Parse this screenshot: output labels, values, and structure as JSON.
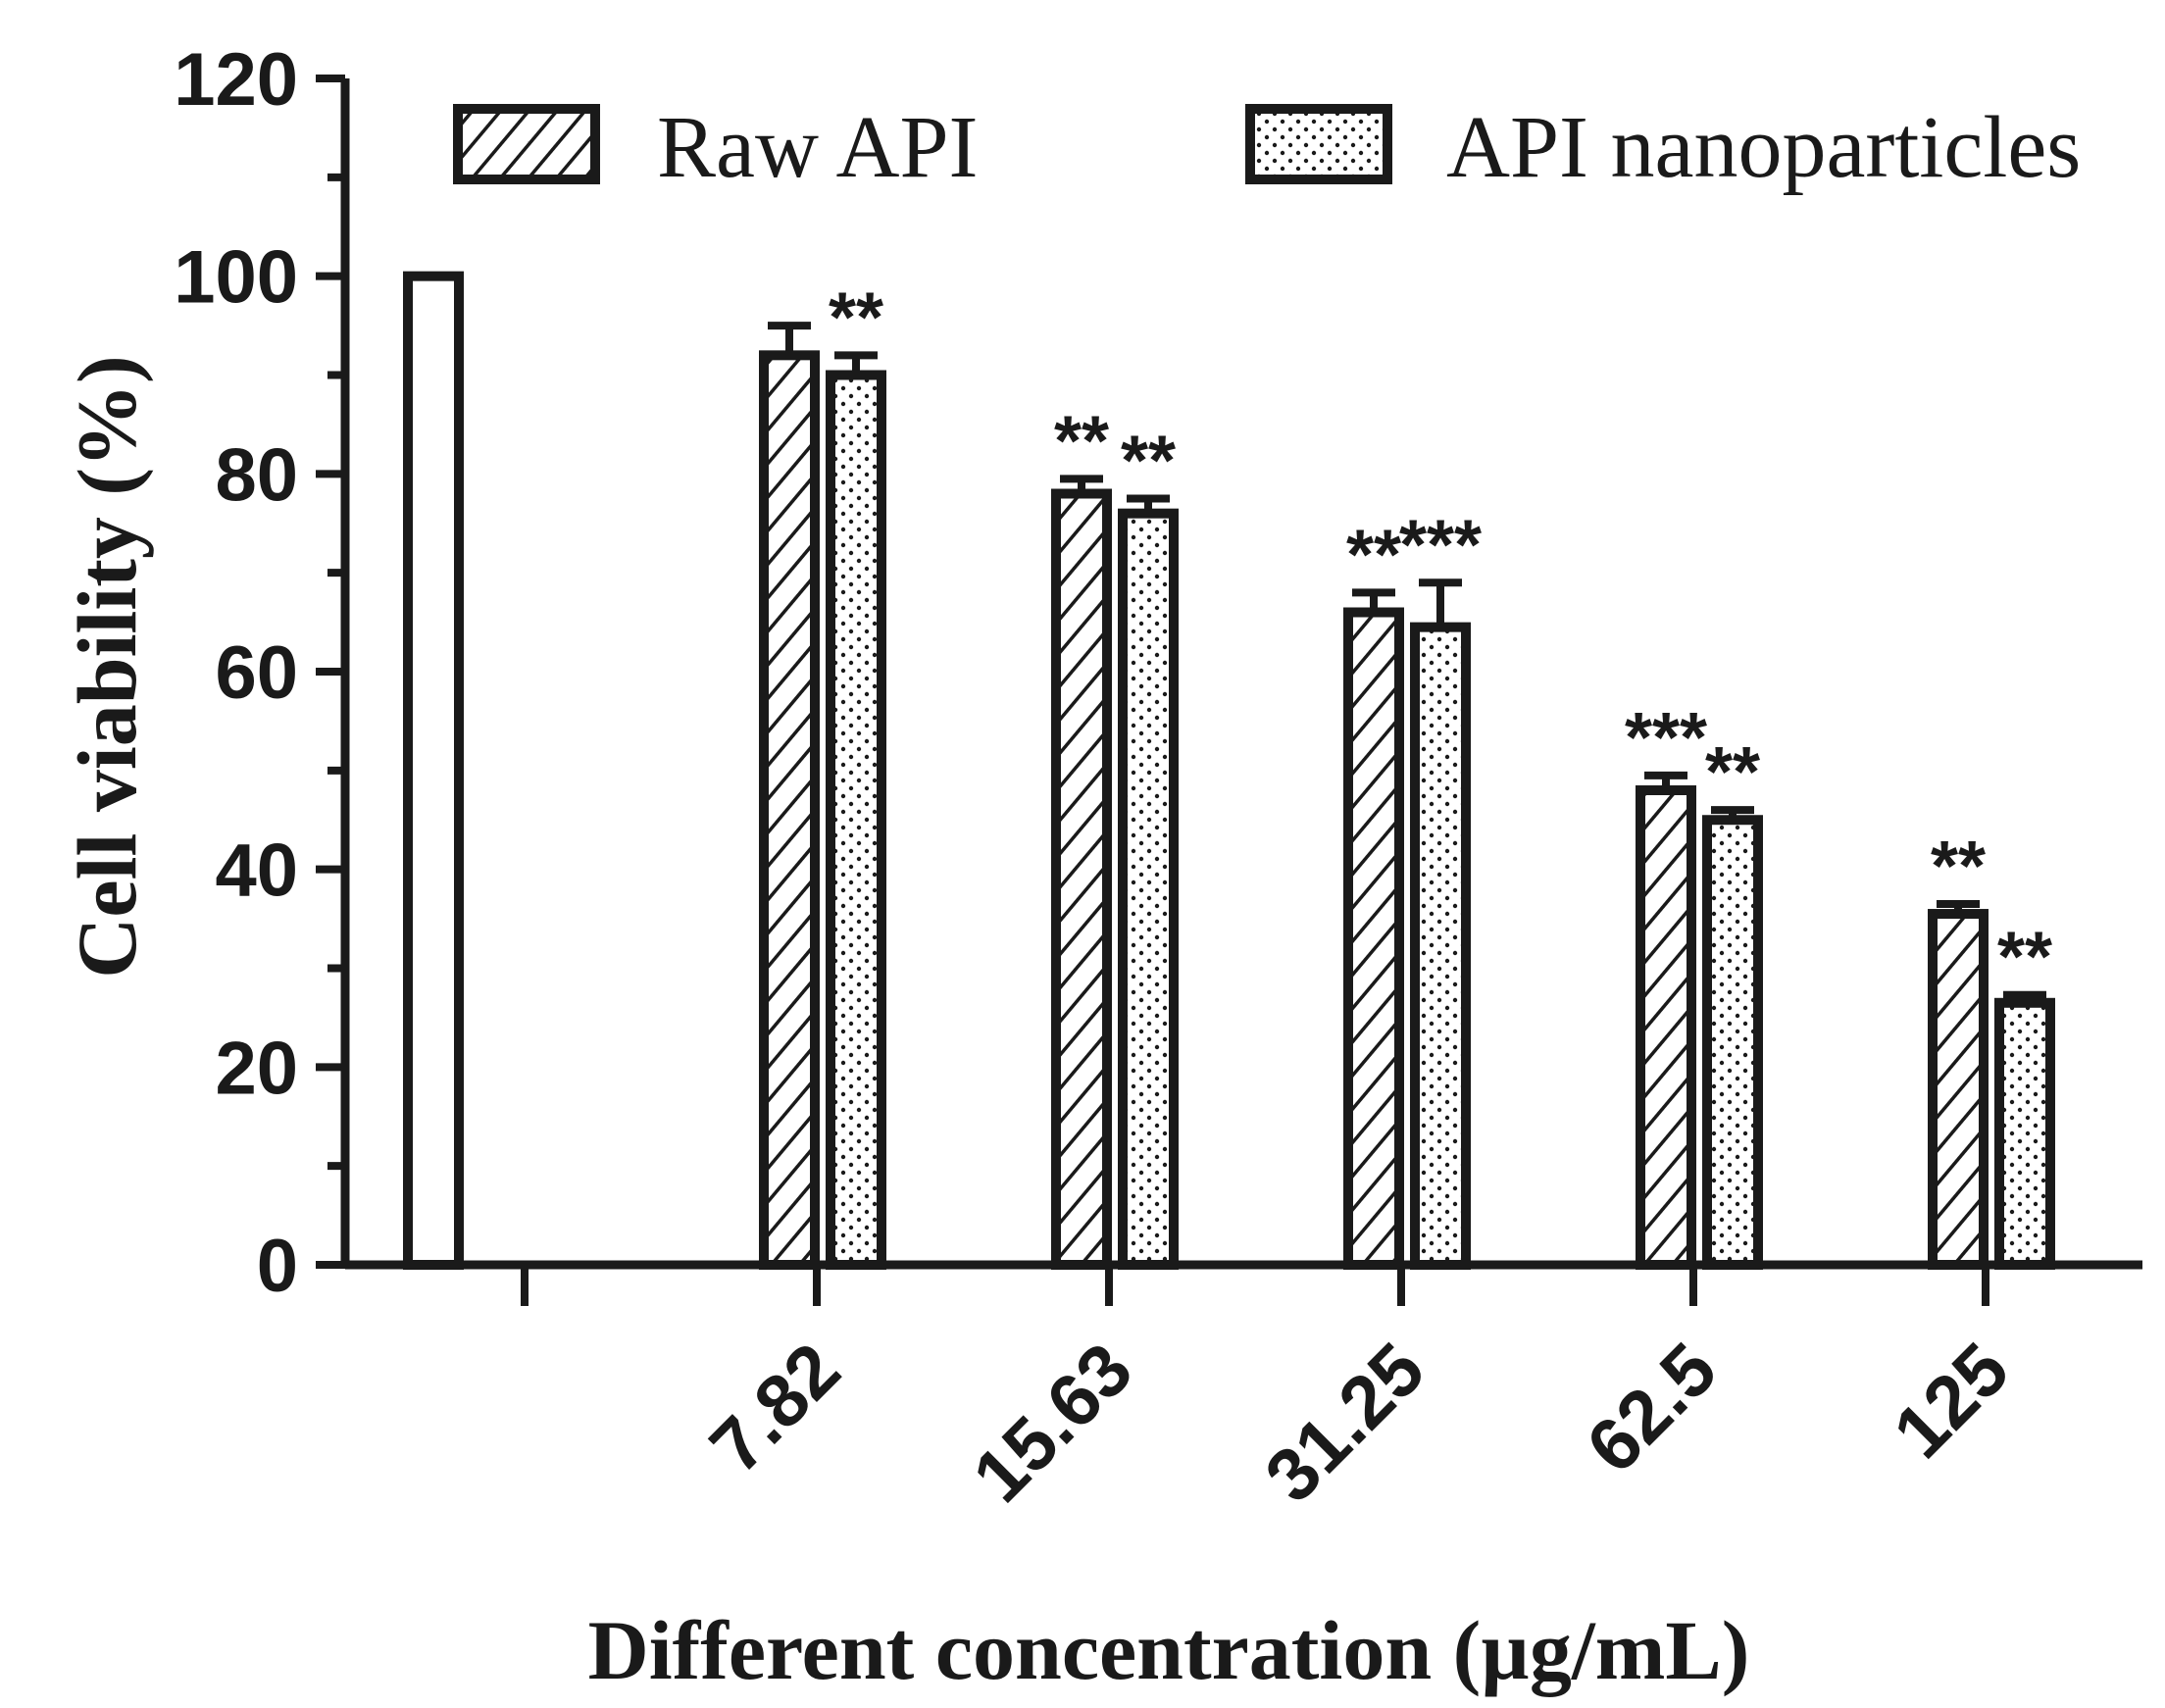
{
  "chart_data": {
    "type": "bar",
    "title": "",
    "xlabel": "Different concentration (µg/mL)",
    "ylabel": "Cell viability (%)",
    "ylim": [
      0,
      120
    ],
    "yticks": [
      "0",
      "20",
      "40",
      "60",
      "80",
      "100",
      "120"
    ],
    "grid": false,
    "legend_position": "top",
    "control": {
      "category": "",
      "value": 100
    },
    "categories": [
      "7.82",
      "15.63",
      "31.25",
      "62.5",
      "125"
    ],
    "series": [
      {
        "name": "Raw API",
        "pattern": "diagonal-hatch",
        "values": [
          92,
          78,
          66,
          48,
          35.5
        ],
        "errors": [
          3,
          1.5,
          2,
          1.5,
          1
        ],
        "significance": [
          "",
          "**",
          "**",
          "***",
          "**"
        ]
      },
      {
        "name": "API nanoparticles",
        "pattern": "dots",
        "values": [
          90,
          76,
          64.5,
          45,
          26.5
        ],
        "errors": [
          2,
          1.5,
          4.5,
          1,
          0.8
        ],
        "significance": [
          "**",
          "**",
          "***",
          "**",
          "**"
        ]
      }
    ],
    "colors": {
      "stroke": "#1a1a1a",
      "fill": "#ffffff"
    }
  }
}
